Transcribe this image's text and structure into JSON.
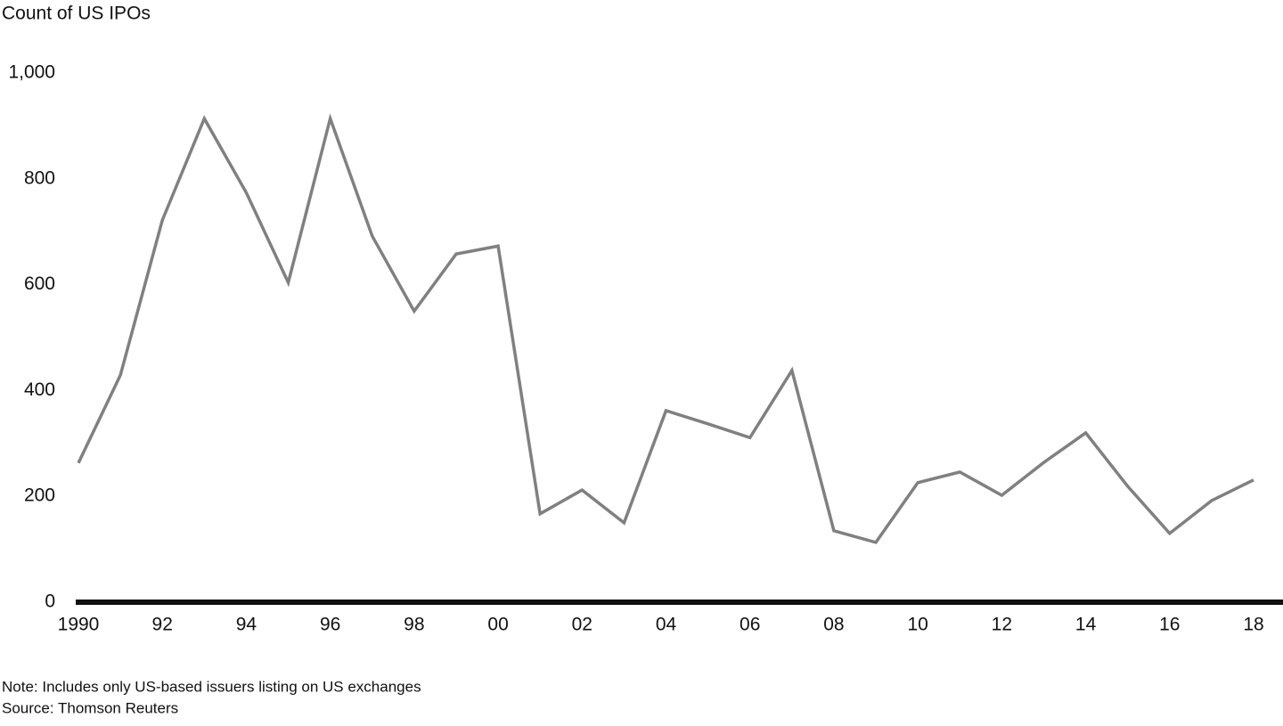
{
  "chart_data": {
    "type": "line",
    "y_axis_label": "Count of US IPOs",
    "categories": [
      "1990",
      null,
      "92",
      null,
      "94",
      null,
      "96",
      null,
      "98",
      null,
      "00",
      null,
      "02",
      null,
      "04",
      null,
      "06",
      null,
      "08",
      null,
      "10",
      null,
      "12",
      null,
      "14",
      null,
      "16",
      null,
      "18"
    ],
    "series": [
      {
        "name": "US IPOs",
        "color": "#808080",
        "values": [
          263,
          429,
          722,
          914,
          774,
          604,
          914,
          692,
          550,
          658,
          673,
          167,
          212,
          150,
          362,
          337,
          311,
          438,
          135,
          113,
          226,
          246,
          202,
          264,
          320,
          219,
          130,
          192,
          231
        ]
      }
    ],
    "ylim": [
      0,
      1000
    ],
    "yticks": [
      0,
      200,
      400,
      600,
      800,
      {
        "value": 1000,
        "label": "1,000"
      }
    ],
    "grid": false,
    "note": "Note: Includes only US-based issuers listing on US exchanges",
    "source": "Source: Thomson Reuters"
  }
}
